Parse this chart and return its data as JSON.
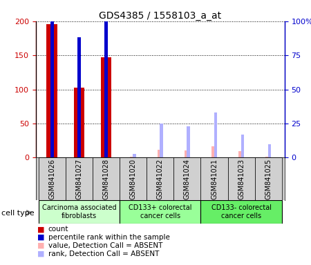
{
  "title": "GDS4385 / 1558103_a_at",
  "samples": [
    "GSM841026",
    "GSM841027",
    "GSM841028",
    "GSM841020",
    "GSM841022",
    "GSM841024",
    "GSM841021",
    "GSM841023",
    "GSM841025"
  ],
  "count_values": [
    196,
    103,
    147,
    null,
    null,
    null,
    null,
    null,
    null
  ],
  "percentile_values": [
    113,
    88,
    102,
    null,
    null,
    null,
    null,
    null,
    null
  ],
  "absent_value_values": [
    null,
    null,
    null,
    2,
    12,
    11,
    17,
    10,
    2
  ],
  "absent_rank_values": [
    null,
    null,
    null,
    3,
    25,
    23,
    33,
    17,
    10
  ],
  "count_color": "#cc0000",
  "percentile_color": "#0000cc",
  "absent_value_color": "#ffb0b0",
  "absent_rank_color": "#b0b0ff",
  "cell_groups": [
    {
      "label": "Carcinoma associated\nfibroblasts",
      "start": 0,
      "end": 3
    },
    {
      "label": "CD133+ colorectal\ncancer cells",
      "start": 3,
      "end": 6
    },
    {
      "label": "CD133- colorectal\ncancer cells",
      "start": 6,
      "end": 9
    }
  ],
  "group_colors": [
    "#ccffcc",
    "#99ff99",
    "#66ee66"
  ],
  "ylim_left": [
    0,
    200
  ],
  "ylim_right": [
    0,
    100
  ],
  "yticks_left": [
    0,
    50,
    100,
    150,
    200
  ],
  "ytick_labels_left": [
    "0",
    "50",
    "100",
    "150",
    "200"
  ],
  "yticks_right": [
    0,
    25,
    50,
    75,
    100
  ],
  "ytick_labels_right": [
    "0",
    "25",
    "50",
    "75",
    "100%"
  ],
  "count_bar_width": 0.4,
  "pct_bar_width": 0.12,
  "absent_bar_width": 0.12,
  "absent_rank_bar_width": 0.12,
  "legend_items": [
    {
      "color": "#cc0000",
      "label": "count"
    },
    {
      "color": "#0000cc",
      "label": "percentile rank within the sample"
    },
    {
      "color": "#ffb0b0",
      "label": "value, Detection Call = ABSENT"
    },
    {
      "color": "#b0b0ff",
      "label": "rank, Detection Call = ABSENT"
    }
  ]
}
